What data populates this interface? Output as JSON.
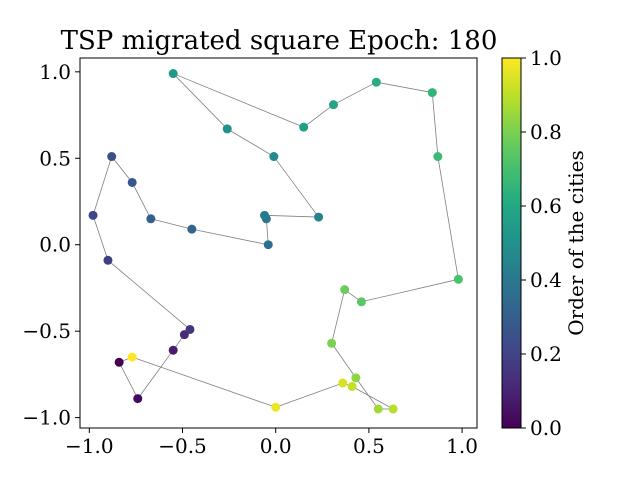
{
  "chart_data": {
    "type": "scatter",
    "title": "TSP migrated square Epoch: 180",
    "xlim": [
      -1.05,
      1.08
    ],
    "ylim": [
      -1.06,
      1.08
    ],
    "x_ticks": [
      -1.0,
      -0.5,
      0.0,
      0.5,
      1.0
    ],
    "x_tick_labels": [
      "−1.0",
      "−0.5",
      "0.0",
      "0.5",
      "1.0"
    ],
    "y_ticks": [
      -1.0,
      -0.5,
      0.0,
      0.5,
      1.0
    ],
    "y_tick_labels": [
      "−1.0",
      "−0.5",
      "0.0",
      "0.5",
      "1.0"
    ],
    "grid": false,
    "path_color": "#808080",
    "colorbar": {
      "label": "Order of the cities",
      "colormap": "viridis",
      "range": [
        0.0,
        1.0
      ],
      "ticks": [
        0.0,
        0.2,
        0.4,
        0.6,
        0.8,
        1.0
      ],
      "tick_labels": [
        "0.0",
        "0.2",
        "0.4",
        "0.6",
        "0.8",
        "1.0"
      ]
    },
    "cities": [
      {
        "x": -0.84,
        "y": -0.68,
        "order": 0.0
      },
      {
        "x": -0.74,
        "y": -0.89,
        "order": 0.03
      },
      {
        "x": -0.55,
        "y": -0.61,
        "order": 0.08
      },
      {
        "x": -0.49,
        "y": -0.52,
        "order": 0.12
      },
      {
        "x": -0.46,
        "y": -0.49,
        "order": 0.15
      },
      {
        "x": -0.9,
        "y": -0.09,
        "order": 0.18
      },
      {
        "x": -0.98,
        "y": 0.17,
        "order": 0.21
      },
      {
        "x": -0.88,
        "y": 0.51,
        "order": 0.24
      },
      {
        "x": -0.77,
        "y": 0.36,
        "order": 0.27
      },
      {
        "x": -0.67,
        "y": 0.15,
        "order": 0.3
      },
      {
        "x": -0.45,
        "y": 0.09,
        "order": 0.33
      },
      {
        "x": -0.04,
        "y": 0.0,
        "order": 0.36
      },
      {
        "x": -0.05,
        "y": 0.15,
        "order": 0.39
      },
      {
        "x": -0.06,
        "y": 0.17,
        "order": 0.41
      },
      {
        "x": 0.23,
        "y": 0.16,
        "order": 0.44
      },
      {
        "x": -0.01,
        "y": 0.51,
        "order": 0.47
      },
      {
        "x": -0.26,
        "y": 0.67,
        "order": 0.5
      },
      {
        "x": -0.55,
        "y": 0.99,
        "order": 0.53
      },
      {
        "x": 0.15,
        "y": 0.68,
        "order": 0.56
      },
      {
        "x": 0.31,
        "y": 0.81,
        "order": 0.59
      },
      {
        "x": 0.54,
        "y": 0.94,
        "order": 0.62
      },
      {
        "x": 0.84,
        "y": 0.88,
        "order": 0.65
      },
      {
        "x": 0.87,
        "y": 0.51,
        "order": 0.68
      },
      {
        "x": 0.98,
        "y": -0.2,
        "order": 0.71
      },
      {
        "x": 0.46,
        "y": -0.33,
        "order": 0.74
      },
      {
        "x": 0.37,
        "y": -0.26,
        "order": 0.77
      },
      {
        "x": 0.3,
        "y": -0.57,
        "order": 0.8
      },
      {
        "x": 0.43,
        "y": -0.77,
        "order": 0.83
      },
      {
        "x": 0.55,
        "y": -0.95,
        "order": 0.86
      },
      {
        "x": 0.63,
        "y": -0.95,
        "order": 0.89
      },
      {
        "x": 0.41,
        "y": -0.82,
        "order": 0.91
      },
      {
        "x": 0.36,
        "y": -0.8,
        "order": 0.94
      },
      {
        "x": 0.0,
        "y": -0.94,
        "order": 0.97
      },
      {
        "x": -0.77,
        "y": -0.65,
        "order": 1.0
      }
    ]
  }
}
